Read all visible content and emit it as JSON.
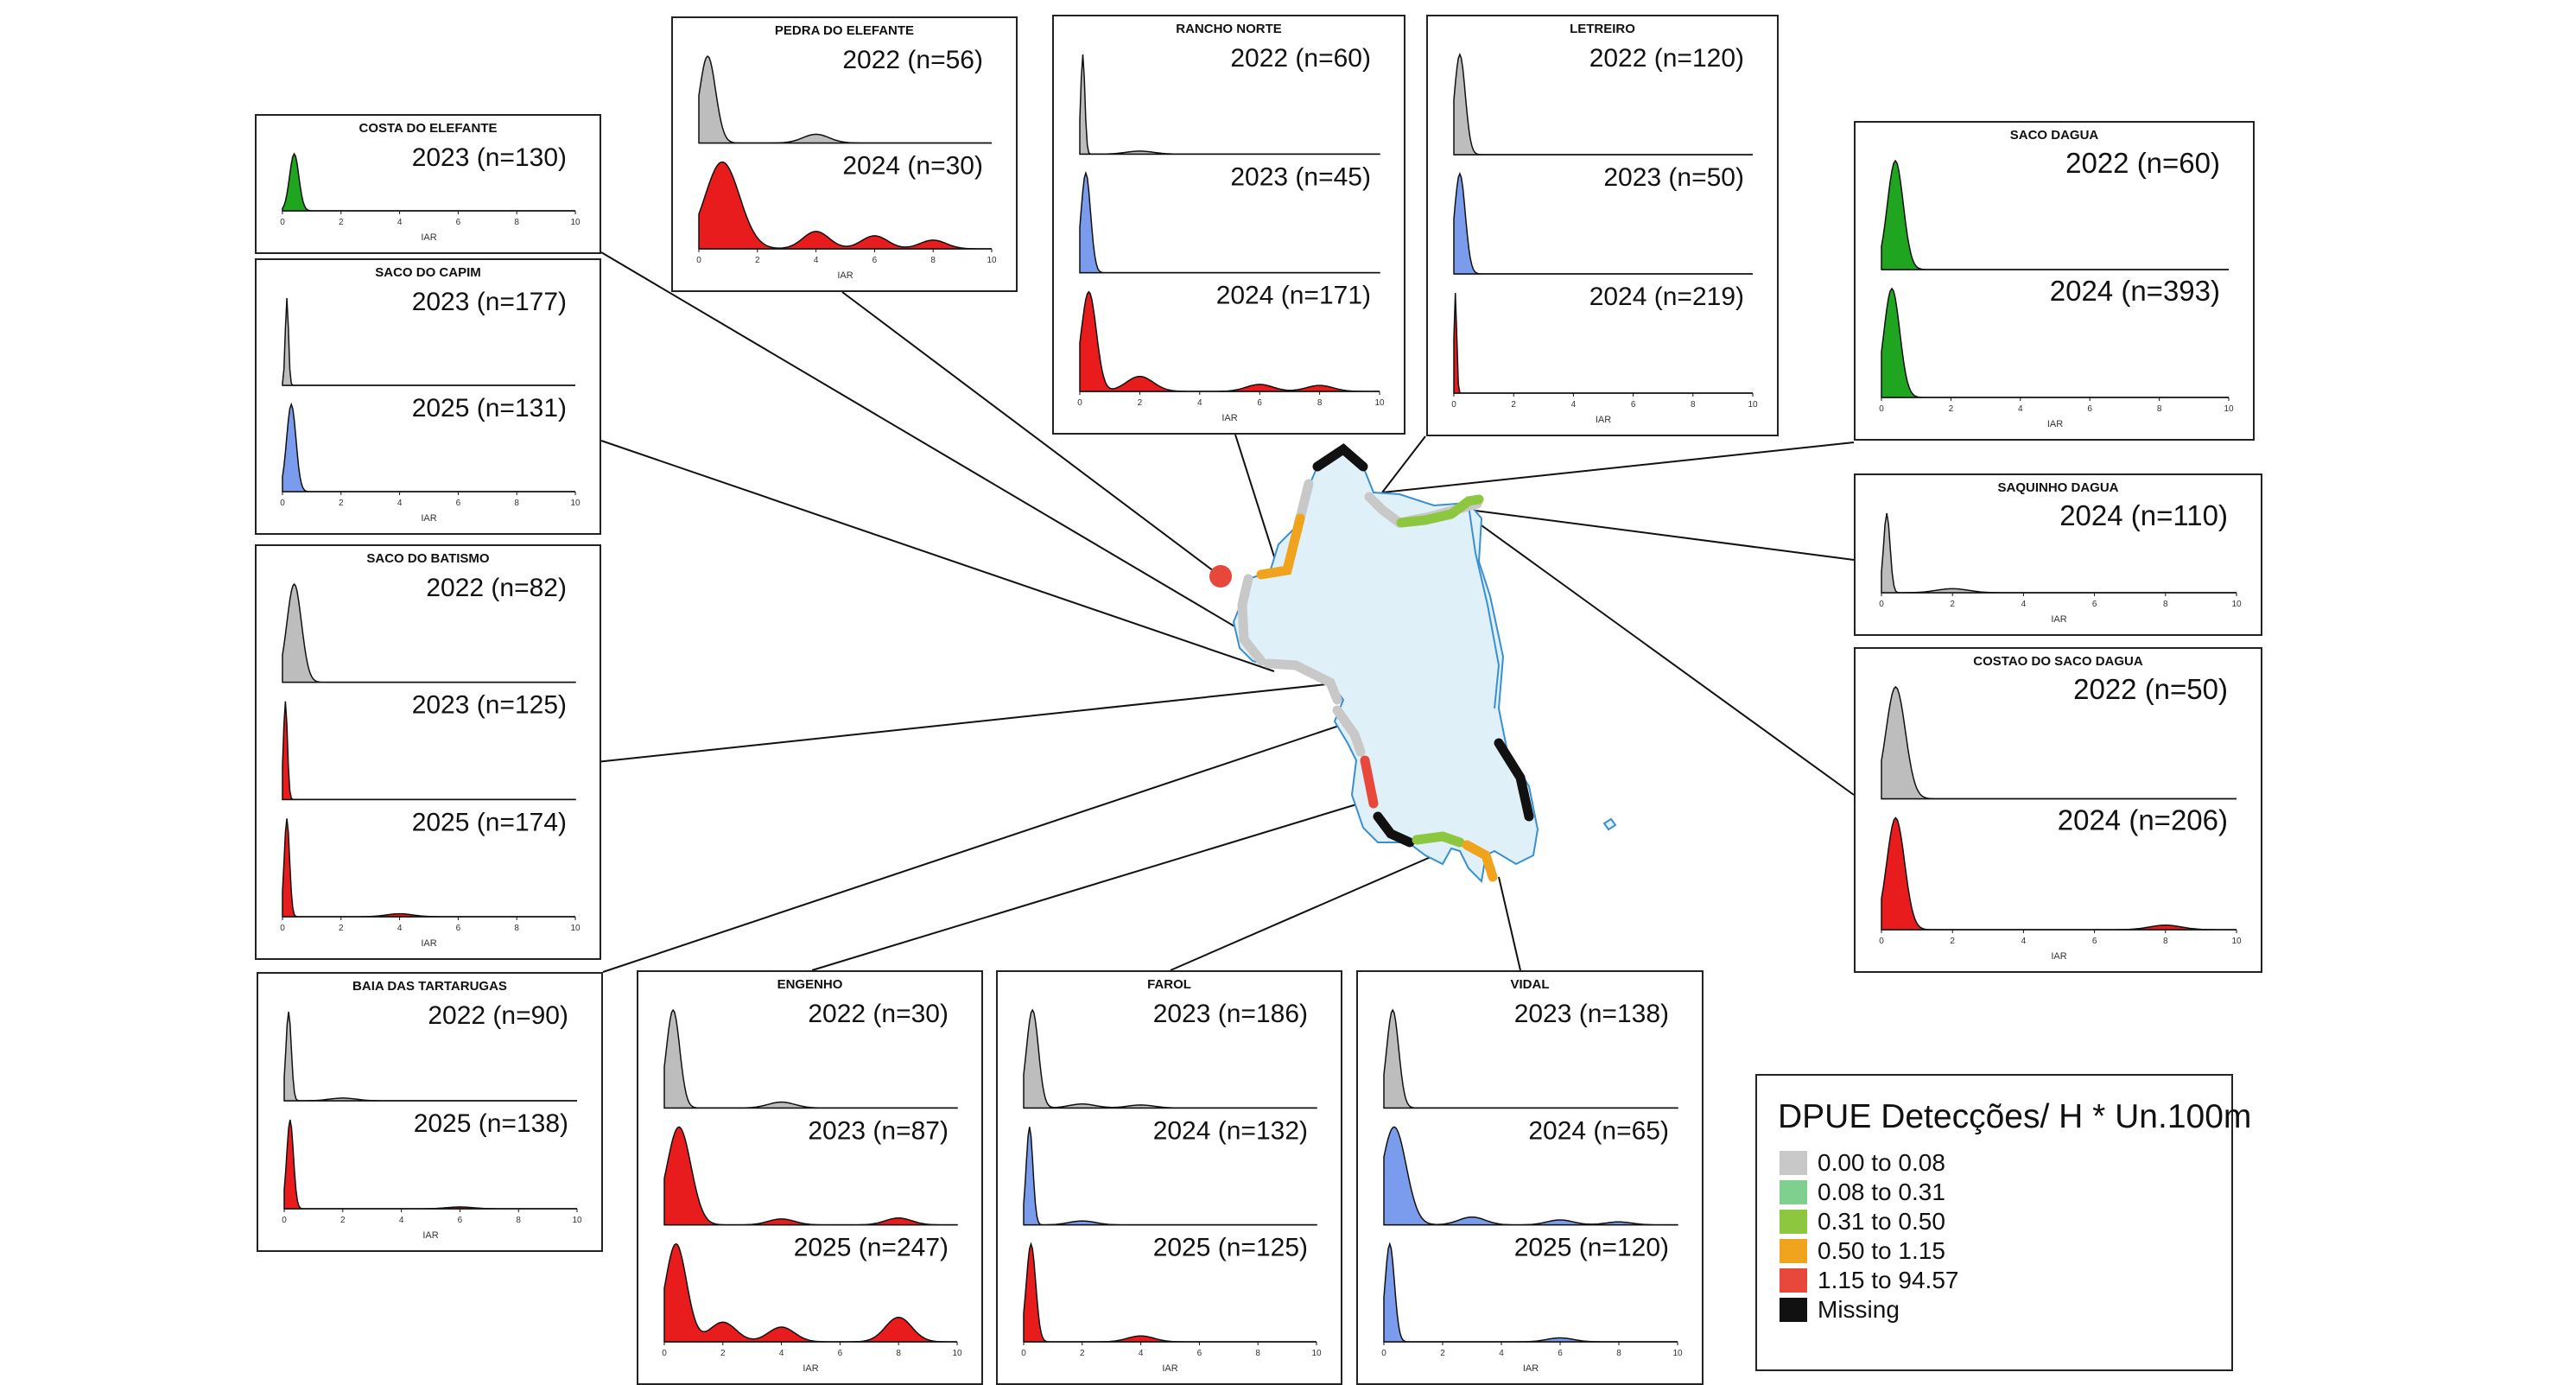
{
  "legend": {
    "title": "DPUE Detecções/ H * Un.100m",
    "items": [
      {
        "label": "0.00 to 0.08",
        "color": "#c8c8c8"
      },
      {
        "label": "0.08 to 0.31",
        "color": "#7fcf8f"
      },
      {
        "label": "0.31 to 0.50",
        "color": "#8dc63f"
      },
      {
        "label": "0.50 to 1.15",
        "color": "#f0a31c"
      },
      {
        "label": "1.15 to 94.57",
        "color": "#e8483c"
      },
      {
        "label": "Missing",
        "color": "#111111"
      }
    ]
  },
  "chart_data": [
    {
      "type": "area",
      "title": "COSTA DO ELEFANTE",
      "xlabel": "IAR",
      "xlim": [
        0,
        10
      ],
      "x_ticks": [
        "0",
        "2",
        "4",
        "6",
        "8",
        "10"
      ],
      "series": [
        {
          "name": "2023 (n=130)",
          "fill": "#1fa51f",
          "peak": 0.4,
          "width": 0.35,
          "minor": []
        }
      ]
    },
    {
      "type": "area",
      "title": "SACO DO CAPIM",
      "xlabel": "IAR",
      "xlim": [
        0,
        10
      ],
      "x_ticks": [
        "0",
        "2",
        "4",
        "6",
        "8",
        "10"
      ],
      "series": [
        {
          "name": "2023 (n=177)",
          "fill": "#bdbdbd",
          "peak": 0.15,
          "width": 0.12,
          "minor": []
        },
        {
          "name": "2025 (n=131)",
          "fill": "#7b9cec",
          "peak": 0.3,
          "width": 0.35,
          "minor": []
        }
      ]
    },
    {
      "type": "area",
      "title": "SACO DO BATISMO",
      "xlabel": "IAR",
      "xlim": [
        0,
        10
      ],
      "x_ticks": [
        "0",
        "2",
        "4",
        "6",
        "8",
        "10"
      ],
      "series": [
        {
          "name": "2022 (n=82)",
          "fill": "#bdbdbd",
          "peak": 0.4,
          "width": 0.55,
          "minor": []
        },
        {
          "name": "2023 (n=125)",
          "fill": "#e81c1c",
          "peak": 0.1,
          "width": 0.15,
          "minor": []
        },
        {
          "name": "2025 (n=174)",
          "fill": "#e81c1c",
          "peak": 0.15,
          "width": 0.2,
          "minor": [
            [
              4,
              0.03
            ]
          ]
        }
      ]
    },
    {
      "type": "area",
      "title": "BAIA DAS TARTARUGAS",
      "xlabel": "IAR",
      "xlim": [
        0,
        10
      ],
      "x_ticks": [
        "0",
        "2",
        "4",
        "6",
        "8",
        "10"
      ],
      "series": [
        {
          "name": "2022 (n=90)",
          "fill": "#bdbdbd",
          "peak": 0.15,
          "width": 0.2,
          "minor": [
            [
              2,
              0.03
            ]
          ]
        },
        {
          "name": "2025 (n=138)",
          "fill": "#e81c1c",
          "peak": 0.2,
          "width": 0.25,
          "minor": [
            [
              6,
              0.02
            ]
          ]
        }
      ]
    },
    {
      "type": "area",
      "title": "PEDRA DO ELEFANTE",
      "xlabel": "IAR",
      "xlim": [
        0,
        10
      ],
      "x_ticks": [
        "0",
        "2",
        "4",
        "6",
        "8",
        "10"
      ],
      "series": [
        {
          "name": "2022 (n=56)",
          "fill": "#bdbdbd",
          "peak": 0.3,
          "width": 0.6,
          "minor": [
            [
              4,
              0.1
            ]
          ]
        },
        {
          "name": "2024 (n=30)",
          "fill": "#e81c1c",
          "peak": 0.8,
          "width": 1.3,
          "minor": [
            [
              4,
              0.2
            ],
            [
              6,
              0.15
            ],
            [
              8,
              0.1
            ]
          ]
        }
      ]
    },
    {
      "type": "area",
      "title": "RANCHO NORTE",
      "xlabel": "IAR",
      "xlim": [
        0,
        10
      ],
      "x_ticks": [
        "0",
        "2",
        "4",
        "6",
        "8",
        "10"
      ],
      "series": [
        {
          "name": "2022 (n=60)",
          "fill": "#bdbdbd",
          "peak": 0.1,
          "width": 0.15,
          "minor": [
            [
              2,
              0.03
            ]
          ]
        },
        {
          "name": "2023 (n=45)",
          "fill": "#7b9cec",
          "peak": 0.2,
          "width": 0.35,
          "minor": []
        },
        {
          "name": "2024 (n=171)",
          "fill": "#e81c1c",
          "peak": 0.3,
          "width": 0.55,
          "minor": [
            [
              2,
              0.15
            ],
            [
              6,
              0.07
            ],
            [
              8,
              0.06
            ]
          ]
        }
      ]
    },
    {
      "type": "area",
      "title": "LETREIRO",
      "xlabel": "IAR",
      "xlim": [
        0,
        10
      ],
      "x_ticks": [
        "0",
        "2",
        "4",
        "6",
        "8",
        "10"
      ],
      "series": [
        {
          "name": "2022 (n=120)",
          "fill": "#bdbdbd",
          "peak": 0.2,
          "width": 0.4,
          "minor": []
        },
        {
          "name": "2023 (n=50)",
          "fill": "#7b9cec",
          "peak": 0.2,
          "width": 0.4,
          "minor": []
        },
        {
          "name": "2024 (n=219)",
          "fill": "#e81c1c",
          "peak": 0.05,
          "width": 0.1,
          "minor": []
        }
      ]
    },
    {
      "type": "area",
      "title": "SACO DAGUA",
      "xlabel": "IAR",
      "xlim": [
        0,
        10
      ],
      "x_ticks": [
        "0",
        "2",
        "4",
        "6",
        "8",
        "10"
      ],
      "series": [
        {
          "name": "2022 (n=60)",
          "fill": "#1fa51f",
          "peak": 0.4,
          "width": 0.5,
          "minor": []
        },
        {
          "name": "2024 (n=393)",
          "fill": "#1fa51f",
          "peak": 0.3,
          "width": 0.5,
          "minor": []
        }
      ]
    },
    {
      "type": "area",
      "title": "SAQUINHO DAGUA",
      "xlabel": "IAR",
      "xlim": [
        0,
        10
      ],
      "x_ticks": [
        "0",
        "2",
        "4",
        "6",
        "8",
        "10"
      ],
      "series": [
        {
          "name": "2024 (n=110)",
          "fill": "#bdbdbd",
          "peak": 0.15,
          "width": 0.2,
          "minor": [
            [
              2,
              0.05
            ]
          ]
        }
      ]
    },
    {
      "type": "area",
      "title": "COSTAO DO SACO DAGUA",
      "xlabel": "IAR",
      "xlim": [
        0,
        10
      ],
      "x_ticks": [
        "0",
        "2",
        "4",
        "6",
        "8",
        "10"
      ],
      "series": [
        {
          "name": "2022 (n=50)",
          "fill": "#bdbdbd",
          "peak": 0.4,
          "width": 0.6,
          "minor": []
        },
        {
          "name": "2024 (n=206)",
          "fill": "#e81c1c",
          "peak": 0.4,
          "width": 0.55,
          "minor": [
            [
              8,
              0.04
            ]
          ]
        }
      ]
    },
    {
      "type": "area",
      "title": "ENGENHO",
      "xlabel": "IAR",
      "xlim": [
        0,
        10
      ],
      "x_ticks": [
        "0",
        "2",
        "4",
        "6",
        "8",
        "10"
      ],
      "series": [
        {
          "name": "2022 (n=30)",
          "fill": "#bdbdbd",
          "peak": 0.3,
          "width": 0.5,
          "minor": [
            [
              4,
              0.06
            ]
          ]
        },
        {
          "name": "2023 (n=87)",
          "fill": "#e81c1c",
          "peak": 0.5,
          "width": 0.9,
          "minor": [
            [
              4,
              0.06
            ],
            [
              8,
              0.07
            ]
          ]
        },
        {
          "name": "2025 (n=247)",
          "fill": "#e81c1c",
          "peak": 0.4,
          "width": 0.8,
          "minor": [
            [
              2,
              0.2
            ],
            [
              4,
              0.15
            ],
            [
              8,
              0.25
            ]
          ]
        }
      ]
    },
    {
      "type": "area",
      "title": "FAROL",
      "xlabel": "IAR",
      "xlim": [
        0,
        10
      ],
      "x_ticks": [
        "0",
        "2",
        "4",
        "6",
        "8",
        "10"
      ],
      "series": [
        {
          "name": "2023 (n=186)",
          "fill": "#bdbdbd",
          "peak": 0.3,
          "width": 0.45,
          "minor": [
            [
              2,
              0.04
            ],
            [
              4,
              0.03
            ]
          ]
        },
        {
          "name": "2024 (n=132)",
          "fill": "#7b9cec",
          "peak": 0.2,
          "width": 0.25,
          "minor": [
            [
              2,
              0.04
            ]
          ]
        },
        {
          "name": "2025 (n=125)",
          "fill": "#e81c1c",
          "peak": 0.25,
          "width": 0.35,
          "minor": [
            [
              4,
              0.06
            ]
          ]
        }
      ]
    },
    {
      "type": "area",
      "title": "VIDAL",
      "xlabel": "IAR",
      "xlim": [
        0,
        10
      ],
      "x_ticks": [
        "0",
        "2",
        "4",
        "6",
        "8",
        "10"
      ],
      "series": [
        {
          "name": "2023 (n=138)",
          "fill": "#bdbdbd",
          "peak": 0.3,
          "width": 0.45,
          "minor": []
        },
        {
          "name": "2024 (n=65)",
          "fill": "#7b9cec",
          "peak": 0.35,
          "width": 0.9,
          "minor": [
            [
              3,
              0.08
            ],
            [
              6,
              0.05
            ],
            [
              8,
              0.03
            ]
          ]
        },
        {
          "name": "2025 (n=120)",
          "fill": "#7b9cec",
          "peak": 0.2,
          "width": 0.35,
          "minor": [
            [
              6,
              0.04
            ]
          ]
        }
      ]
    }
  ]
}
